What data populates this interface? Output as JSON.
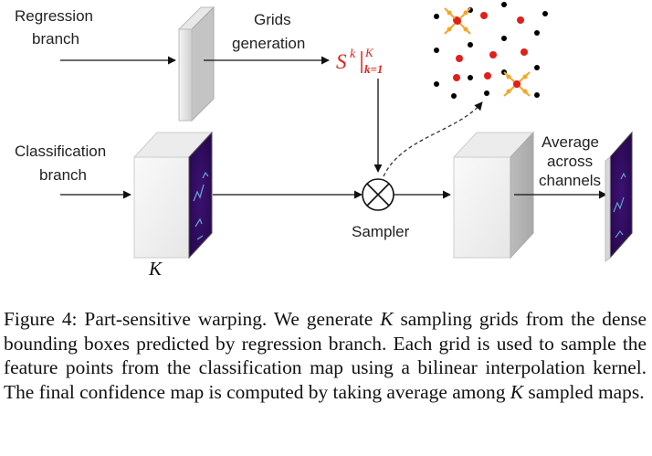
{
  "labels": {
    "regression": [
      "Regression",
      "branch"
    ],
    "grids": [
      "Grids",
      "generation"
    ],
    "classification": [
      "Classification",
      "branch"
    ],
    "sampler": "Sampler",
    "average": [
      "Average",
      "across",
      "channels"
    ],
    "k_label": "K",
    "sk_main": "S",
    "sk_sup": "k",
    "sk_sup2": "K",
    "sk_sub": "k=1"
  },
  "caption": {
    "p1": "Figure 4: Part-sensitive warping. We generate ",
    "k1": "K",
    "p2": " sampling grids from the dense bounding boxes predicted by regression branch. Each grid is used to sample the feature points from the classification map using a bilinear interpolation kernel. The final confidence map is computed by taking average among ",
    "k2": "K",
    "p3": " sampled maps."
  },
  "colors": {
    "accent_red": "#e0201b",
    "offset_orange": "#f5a623",
    "feature_purple": "#2b0a57"
  }
}
